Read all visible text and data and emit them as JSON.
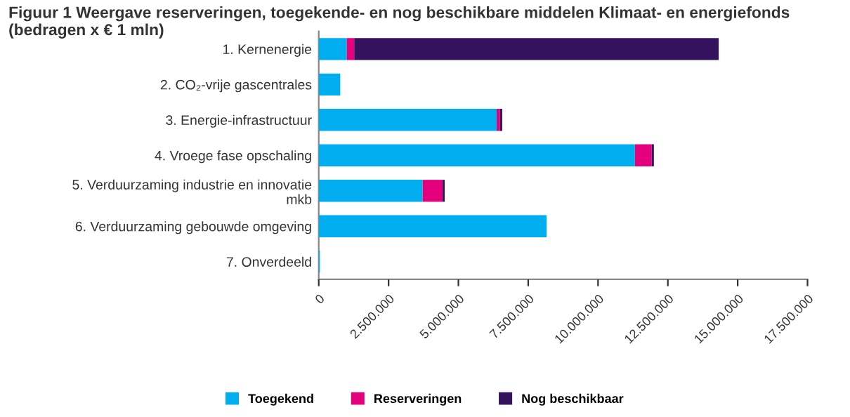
{
  "chart_data": {
    "type": "bar",
    "orientation": "horizontal",
    "stacked": true,
    "title": "Figuur 1 Weergave reserveringen, toegekende- en nog beschikbare middelen Klimaat- en energiefonds (bedragen x € 1 mln)",
    "categories": [
      "1. Kernenergie",
      "2. CO₂-vrije gascentrales",
      "3. Energie-infrastructuur",
      "4. Vroege fase opschaling",
      "5. Verduurzaming industrie en innovatie\nmkb",
      "6. Verduurzaming gebouwde omgeving",
      "7. Onverdeeld"
    ],
    "series": [
      {
        "name": "Toegekend",
        "color": "#00aeef",
        "values": [
          1000000,
          770000,
          6370000,
          11320000,
          3720000,
          8160000,
          40000
        ]
      },
      {
        "name": "Reserveringen",
        "color": "#e4007c",
        "values": [
          270000,
          0,
          120000,
          600000,
          710000,
          0,
          0
        ]
      },
      {
        "name": "Nog beschikbaar",
        "color": "#35125e",
        "values": [
          13050000,
          0,
          80000,
          80000,
          80000,
          0,
          0
        ]
      }
    ],
    "xlim": [
      0,
      17500000
    ],
    "xticks": [
      0,
      {
        "value": 2500000,
        "label": "2.500.000"
      },
      {
        "value": 5000000,
        "label": "5.000.000"
      },
      {
        "value": 7500000,
        "label": "7.500.000"
      },
      {
        "value": 10000000,
        "label": "10.000.000"
      },
      {
        "value": 12500000,
        "label": "12.500.000"
      },
      {
        "value": 15000000,
        "label": "15.000.000"
      },
      {
        "value": 17500000,
        "label": "17.500.000"
      }
    ],
    "grid": false,
    "legend": "bottom"
  }
}
